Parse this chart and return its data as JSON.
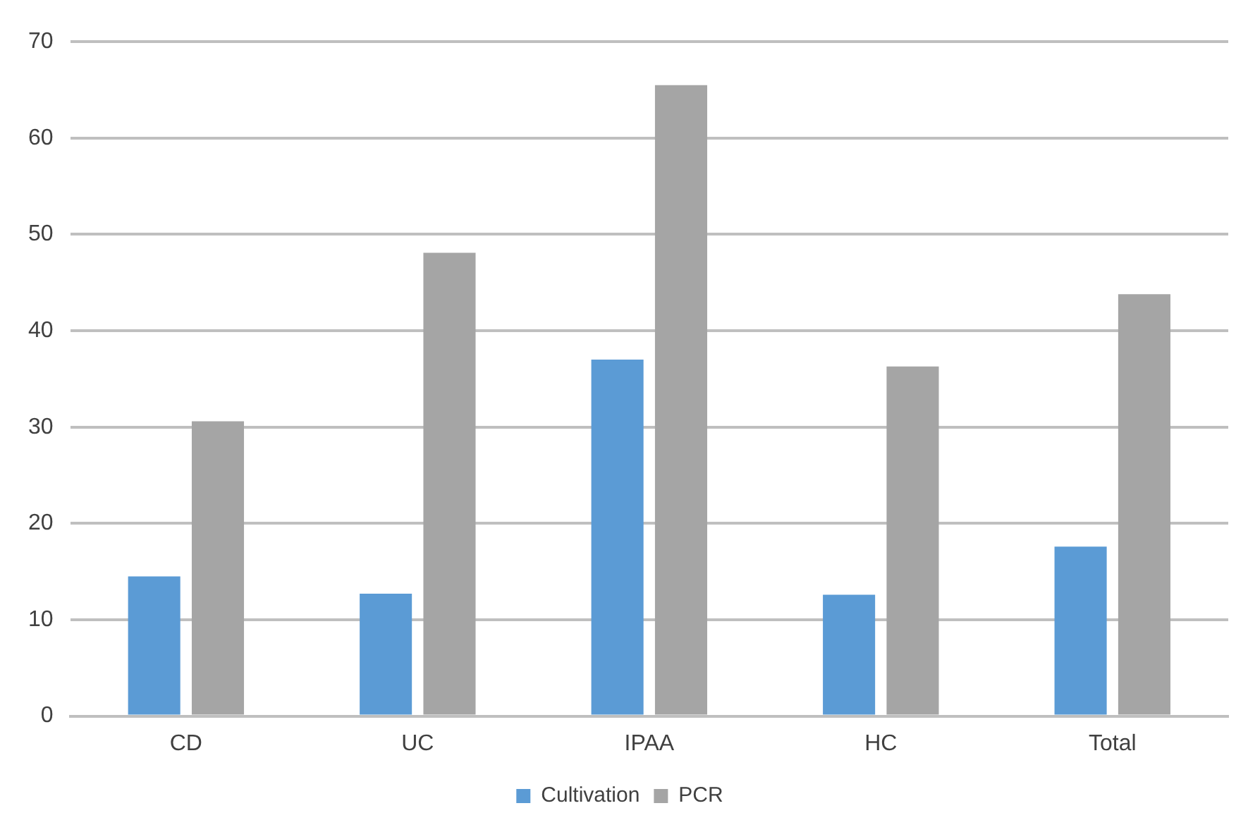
{
  "chart_data": {
    "type": "bar",
    "categories": [
      "CD",
      "UC",
      "IPAA",
      "HC",
      "Total"
    ],
    "series": [
      {
        "name": "Cultivation",
        "color": "#5b9bd5",
        "values": [
          14.5,
          12.7,
          37,
          12.6,
          17.6
        ]
      },
      {
        "name": "PCR",
        "color": "#a5a5a5",
        "values": [
          30.6,
          48.1,
          65.5,
          36.3,
          43.8
        ]
      }
    ],
    "ylim": [
      0,
      70
    ],
    "yticks": [
      0,
      10,
      20,
      30,
      40,
      50,
      60,
      70
    ],
    "grid": "y",
    "legend": "bottom"
  }
}
